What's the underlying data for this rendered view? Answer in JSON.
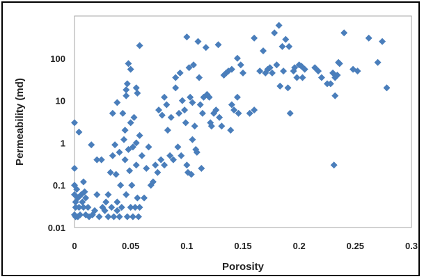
{
  "chart_data": {
    "type": "scatter",
    "title": "",
    "xlabel": "Porosity",
    "ylabel": "Permeability (md)",
    "x_scale": "linear",
    "y_scale": "log",
    "xlim": [
      0,
      0.3
    ],
    "ylim": [
      0.01,
      1000
    ],
    "grid": false,
    "legend": "none",
    "marker": "diamond",
    "color": "#4a7ebb",
    "x_ticks": [
      "0",
      "0.05",
      "0.1",
      "0.15",
      "0.2",
      "0.25",
      "0.3"
    ],
    "y_ticks": [
      "0.01",
      "0.1",
      "1",
      "10",
      "100"
    ],
    "series": [
      {
        "points": [
          [
            0.0,
            3.0
          ],
          [
            0.0,
            0.25
          ],
          [
            0.0,
            0.1
          ],
          [
            0.0,
            0.06
          ],
          [
            0.001,
            0.04
          ],
          [
            0.001,
            0.03
          ],
          [
            0.0,
            0.02
          ],
          [
            0.001,
            0.018
          ],
          [
            0.002,
            0.08
          ],
          [
            0.003,
            0.05
          ],
          [
            0.004,
            0.03
          ],
          [
            0.005,
            0.02
          ],
          [
            0.006,
            0.06
          ],
          [
            0.007,
            0.04
          ],
          [
            0.003,
            0.018
          ],
          [
            0.008,
            0.03
          ],
          [
            0.009,
            0.07
          ],
          [
            0.01,
            0.05
          ],
          [
            0.004,
            1.8
          ],
          [
            0.008,
            0.12
          ],
          [
            0.01,
            0.02
          ],
          [
            0.012,
            0.03
          ],
          [
            0.015,
            0.9
          ],
          [
            0.013,
            0.018
          ],
          [
            0.016,
            0.02
          ],
          [
            0.018,
            0.025
          ],
          [
            0.02,
            0.4
          ],
          [
            0.02,
            0.06
          ],
          [
            0.022,
            0.018
          ],
          [
            0.024,
            0.4
          ],
          [
            0.025,
            0.03
          ],
          [
            0.027,
            0.025
          ],
          [
            0.028,
            0.04
          ],
          [
            0.03,
            0.018
          ],
          [
            0.03,
            0.06
          ],
          [
            0.032,
            0.2
          ],
          [
            0.033,
            0.03
          ],
          [
            0.034,
            5.0
          ],
          [
            0.034,
            0.5
          ],
          [
            0.035,
            0.018
          ],
          [
            0.036,
            0.9
          ],
          [
            0.037,
            0.18
          ],
          [
            0.038,
            0.04
          ],
          [
            0.038,
            0.025
          ],
          [
            0.038,
            9.0
          ],
          [
            0.04,
            0.6
          ],
          [
            0.04,
            0.018
          ],
          [
            0.041,
            0.1
          ],
          [
            0.042,
            0.03
          ],
          [
            0.043,
            5.0
          ],
          [
            0.044,
            1.2
          ],
          [
            0.045,
            2.0
          ],
          [
            0.045,
            0.4
          ],
          [
            0.046,
            13.0
          ],
          [
            0.046,
            18.0
          ],
          [
            0.046,
            0.06
          ],
          [
            0.047,
            25.0
          ],
          [
            0.047,
            0.018
          ],
          [
            0.048,
            0.7
          ],
          [
            0.048,
            75.0
          ],
          [
            0.049,
            0.22
          ],
          [
            0.05,
            55.0
          ],
          [
            0.05,
            3.0
          ],
          [
            0.05,
            0.03
          ],
          [
            0.051,
            0.1
          ],
          [
            0.052,
            0.8
          ],
          [
            0.052,
            0.018
          ],
          [
            0.053,
            4.0
          ],
          [
            0.054,
            0.03
          ],
          [
            0.055,
            20.0
          ],
          [
            0.055,
            1.0
          ],
          [
            0.055,
            0.3
          ],
          [
            0.056,
            15.0
          ],
          [
            0.056,
            0.05
          ],
          [
            0.057,
            0.018
          ],
          [
            0.058,
            200.0
          ],
          [
            0.058,
            1.5
          ],
          [
            0.058,
            0.03
          ],
          [
            0.06,
            0.5
          ],
          [
            0.062,
            0.05
          ],
          [
            0.064,
            0.25
          ],
          [
            0.066,
            0.8
          ],
          [
            0.068,
            0.1
          ],
          [
            0.07,
            0.12
          ],
          [
            0.072,
            0.3
          ],
          [
            0.074,
            0.2
          ],
          [
            0.075,
            6.0
          ],
          [
            0.077,
            0.4
          ],
          [
            0.078,
            4.5
          ],
          [
            0.08,
            12.0
          ],
          [
            0.08,
            0.3
          ],
          [
            0.082,
            8.0
          ],
          [
            0.083,
            2.0
          ],
          [
            0.085,
            0.5
          ],
          [
            0.086,
            4.0
          ],
          [
            0.088,
            0.4
          ],
          [
            0.09,
            35.0
          ],
          [
            0.09,
            20.0
          ],
          [
            0.092,
            0.8
          ],
          [
            0.093,
            5.0
          ],
          [
            0.094,
            45.0
          ],
          [
            0.095,
            0.5
          ],
          [
            0.096,
            10.0
          ],
          [
            0.098,
            6.0
          ],
          [
            0.099,
            3.0
          ],
          [
            0.1,
            320.0
          ],
          [
            0.1,
            0.3
          ],
          [
            0.101,
            0.2
          ],
          [
            0.102,
            60.0
          ],
          [
            0.103,
            12.0
          ],
          [
            0.104,
            0.18
          ],
          [
            0.105,
            9.0
          ],
          [
            0.105,
            1.2
          ],
          [
            0.106,
            70.0
          ],
          [
            0.107,
            2.5
          ],
          [
            0.108,
            0.7
          ],
          [
            0.109,
            0.6
          ],
          [
            0.11,
            250.0
          ],
          [
            0.111,
            35.0
          ],
          [
            0.112,
            8.0
          ],
          [
            0.113,
            0.25
          ],
          [
            0.114,
            5.0
          ],
          [
            0.115,
            12.0
          ],
          [
            0.117,
            180.0
          ],
          [
            0.118,
            14.0
          ],
          [
            0.12,
            12.0
          ],
          [
            0.121,
            3.0
          ],
          [
            0.122,
            2.5
          ],
          [
            0.124,
            5.0
          ],
          [
            0.126,
            6.0
          ],
          [
            0.128,
            210.0
          ],
          [
            0.129,
            4.0
          ],
          [
            0.131,
            2.5
          ],
          [
            0.133,
            40.0
          ],
          [
            0.135,
            45.0
          ],
          [
            0.137,
            50.0
          ],
          [
            0.139,
            2.0
          ],
          [
            0.14,
            8.0
          ],
          [
            0.14,
            55.0
          ],
          [
            0.142,
            6.0
          ],
          [
            0.145,
            100.0
          ],
          [
            0.145,
            12.0
          ],
          [
            0.146,
            5.0
          ],
          [
            0.148,
            70.0
          ],
          [
            0.15,
            45.0
          ],
          [
            0.156,
            5.0
          ],
          [
            0.16,
            300.0
          ],
          [
            0.16,
            6.0
          ],
          [
            0.165,
            50.0
          ],
          [
            0.168,
            150.0
          ],
          [
            0.17,
            45.0
          ],
          [
            0.172,
            55.0
          ],
          [
            0.174,
            60.0
          ],
          [
            0.176,
            45.0
          ],
          [
            0.178,
            400.0
          ],
          [
            0.18,
            70.0
          ],
          [
            0.182,
            600.0
          ],
          [
            0.183,
            22.0
          ],
          [
            0.185,
            190.0
          ],
          [
            0.186,
            50.0
          ],
          [
            0.188,
            280.0
          ],
          [
            0.19,
            20.0
          ],
          [
            0.191,
            190.0
          ],
          [
            0.192,
            5.0
          ],
          [
            0.195,
            50.0
          ],
          [
            0.196,
            60.0
          ],
          [
            0.198,
            35.0
          ],
          [
            0.2,
            70.0
          ],
          [
            0.202,
            65.0
          ],
          [
            0.203,
            35.0
          ],
          [
            0.205,
            55.0
          ],
          [
            0.214,
            60.0
          ],
          [
            0.217,
            50.0
          ],
          [
            0.22,
            35.0
          ],
          [
            0.225,
            25.0
          ],
          [
            0.228,
            25.0
          ],
          [
            0.23,
            45.0
          ],
          [
            0.231,
            0.3
          ],
          [
            0.232,
            13.0
          ],
          [
            0.232,
            35.0
          ],
          [
            0.234,
            40.0
          ],
          [
            0.236,
            75.0
          ],
          [
            0.24,
            400.0
          ],
          [
            0.248,
            55.0
          ],
          [
            0.252,
            50.0
          ],
          [
            0.262,
            300.0
          ],
          [
            0.27,
            80.0
          ],
          [
            0.274,
            250.0
          ],
          [
            0.278,
            20.0
          ],
          [
            0.235,
            80.0
          ]
        ]
      }
    ]
  }
}
